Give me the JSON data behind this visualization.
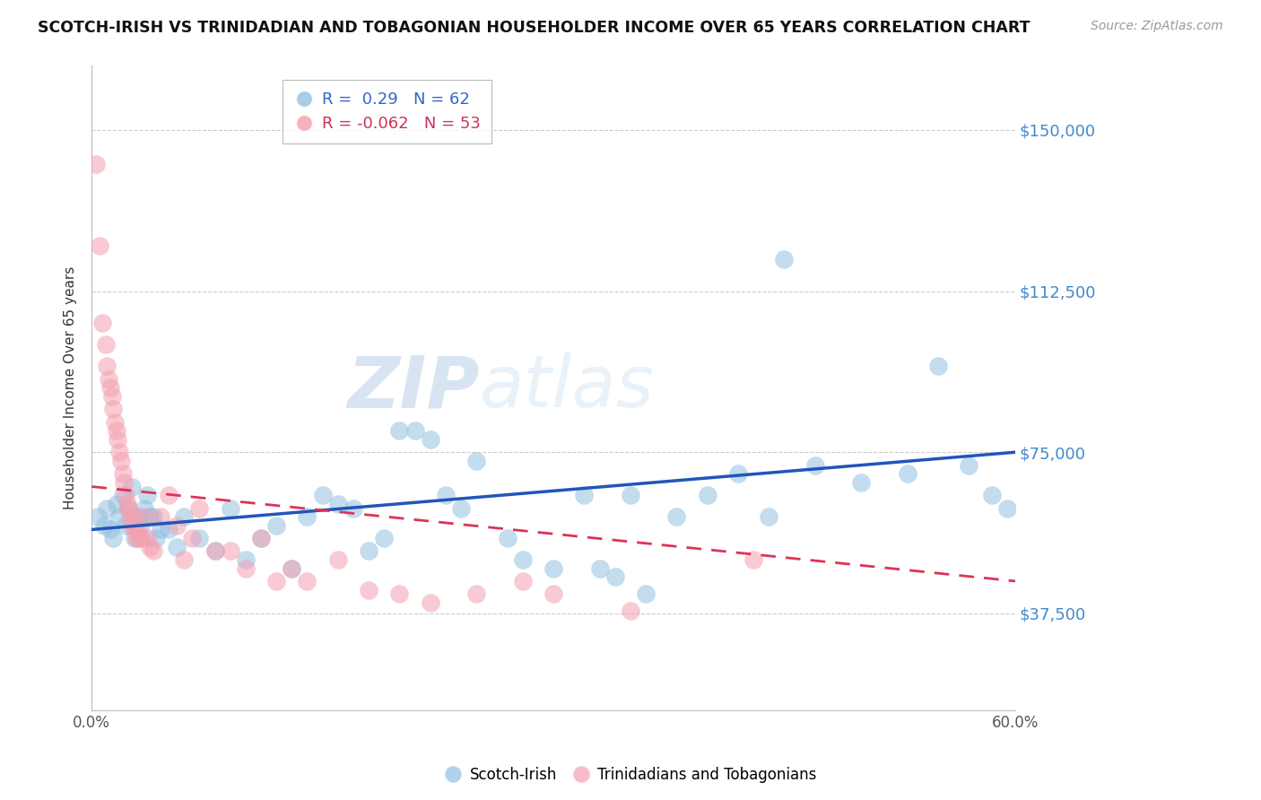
{
  "title": "SCOTCH-IRISH VS TRINIDADIAN AND TOBAGONIAN HOUSEHOLDER INCOME OVER 65 YEARS CORRELATION CHART",
  "source": "Source: ZipAtlas.com",
  "ylabel": "Householder Income Over 65 years",
  "xmin": 0.0,
  "xmax": 60.0,
  "ymin": 15000,
  "ymax": 165000,
  "yticks": [
    37500,
    75000,
    112500,
    150000
  ],
  "ytick_labels": [
    "$37,500",
    "$75,000",
    "$112,500",
    "$150,000"
  ],
  "blue_R": 0.29,
  "blue_N": 62,
  "pink_R": -0.062,
  "pink_N": 53,
  "blue_color": "#92c0e0",
  "pink_color": "#f4a0b0",
  "trend_blue": "#2255bb",
  "trend_pink": "#dd3355",
  "watermark_zip": "ZIP",
  "watermark_atlas": "atlas",
  "legend_label_blue": "Scotch-Irish",
  "legend_label_pink": "Trinidadians and Tobagonians",
  "blue_scatter_x": [
    0.4,
    0.8,
    1.0,
    1.2,
    1.4,
    1.6,
    1.8,
    2.0,
    2.2,
    2.4,
    2.6,
    2.8,
    3.0,
    3.2,
    3.4,
    3.6,
    3.8,
    4.0,
    4.2,
    4.5,
    5.0,
    5.5,
    6.0,
    7.0,
    8.0,
    9.0,
    10.0,
    11.0,
    12.0,
    13.0,
    14.0,
    15.0,
    16.0,
    17.0,
    18.0,
    19.0,
    20.0,
    21.0,
    22.0,
    23.0,
    24.0,
    25.0,
    27.0,
    28.0,
    30.0,
    32.0,
    33.0,
    34.0,
    35.0,
    36.0,
    38.0,
    40.0,
    42.0,
    44.0,
    45.0,
    47.0,
    50.0,
    53.0,
    55.0,
    57.0,
    58.5,
    59.5
  ],
  "blue_scatter_y": [
    60000,
    58000,
    62000,
    57000,
    55000,
    63000,
    60000,
    65000,
    58000,
    62000,
    67000,
    55000,
    60000,
    58000,
    62000,
    65000,
    60000,
    60000,
    55000,
    57000,
    57000,
    53000,
    60000,
    55000,
    52000,
    62000,
    50000,
    55000,
    58000,
    48000,
    60000,
    65000,
    63000,
    62000,
    52000,
    55000,
    80000,
    80000,
    78000,
    65000,
    62000,
    73000,
    55000,
    50000,
    48000,
    65000,
    48000,
    46000,
    65000,
    42000,
    60000,
    65000,
    70000,
    60000,
    120000,
    72000,
    68000,
    70000,
    95000,
    72000,
    65000,
    62000
  ],
  "pink_scatter_x": [
    0.3,
    0.5,
    0.7,
    0.9,
    1.0,
    1.1,
    1.2,
    1.3,
    1.4,
    1.5,
    1.6,
    1.7,
    1.8,
    1.9,
    2.0,
    2.1,
    2.2,
    2.3,
    2.4,
    2.5,
    2.6,
    2.7,
    2.8,
    2.9,
    3.0,
    3.1,
    3.2,
    3.4,
    3.6,
    3.8,
    4.0,
    4.5,
    5.0,
    5.5,
    6.0,
    6.5,
    7.0,
    8.0,
    9.0,
    10.0,
    11.0,
    12.0,
    13.0,
    14.0,
    16.0,
    18.0,
    20.0,
    22.0,
    25.0,
    28.0,
    30.0,
    35.0,
    43.0
  ],
  "pink_scatter_y": [
    142000,
    123000,
    105000,
    100000,
    95000,
    92000,
    90000,
    88000,
    85000,
    82000,
    80000,
    78000,
    75000,
    73000,
    70000,
    68000,
    65000,
    63000,
    62000,
    60000,
    58000,
    60000,
    57000,
    55000,
    57000,
    55000,
    55000,
    60000,
    55000,
    53000,
    52000,
    60000,
    65000,
    58000,
    50000,
    55000,
    62000,
    52000,
    52000,
    48000,
    55000,
    45000,
    48000,
    45000,
    50000,
    43000,
    42000,
    40000,
    42000,
    45000,
    42000,
    38000,
    50000
  ]
}
